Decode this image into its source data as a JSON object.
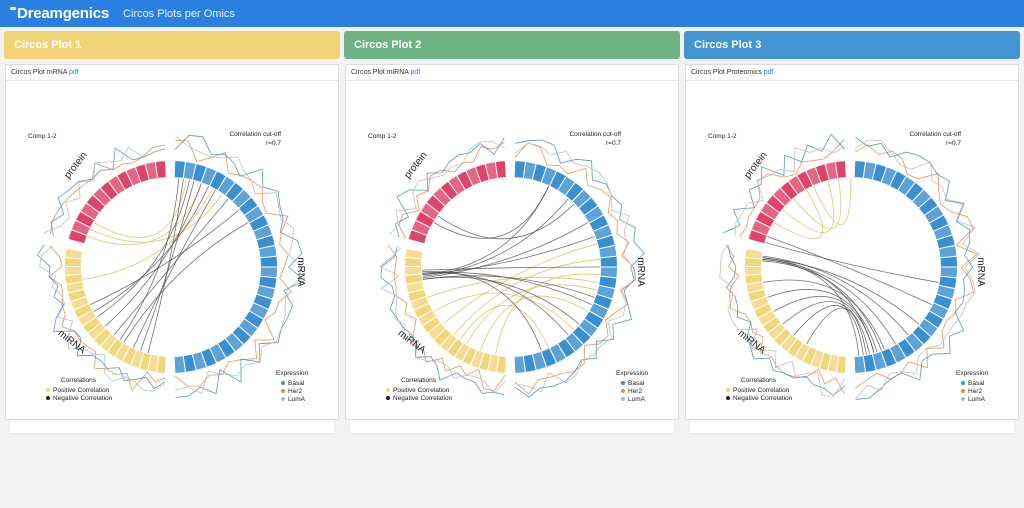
{
  "header": {
    "logo": "Dreamgenics",
    "title": "Circos Plots per Omics"
  },
  "colors": {
    "topbar": "#2a80e1",
    "mrna": "#3a8fd0",
    "protein": "#e0436a",
    "mirna": "#f2d67a",
    "positive": "#f2d67a",
    "negative": "#222222",
    "basal": "#3a8fd0",
    "her2": "#e8893a",
    "luma": "#b9b9b9"
  },
  "panels": [
    {
      "header": "Circos Plot 1",
      "color": "#f0d477",
      "body_title": "Circos Plot mRNA",
      "link": "pdf"
    },
    {
      "header": "Circos Plot 2",
      "color": "#6fb283",
      "body_title": "Circos Plot miRNA",
      "link": "pdf"
    },
    {
      "header": "Circos Plot 3",
      "color": "#4295d0",
      "body_title": "Circos Plot Proteomics",
      "link": "pdf"
    }
  ],
  "plot": {
    "comp": "Comp 1-2",
    "cutoff_title": "Correlation cut-off",
    "cutoff_value": "r=0.7",
    "block_labels": {
      "protein": "protein",
      "mrna": "mRNA",
      "mirna": "miRNA"
    },
    "legend_corr": {
      "title": "Correlations",
      "positive": "Positive Correlation",
      "negative": "Negative Correlation"
    },
    "legend_expr": {
      "title": "Expression",
      "items": [
        "Basal",
        "Her2",
        "LumA"
      ]
    }
  }
}
